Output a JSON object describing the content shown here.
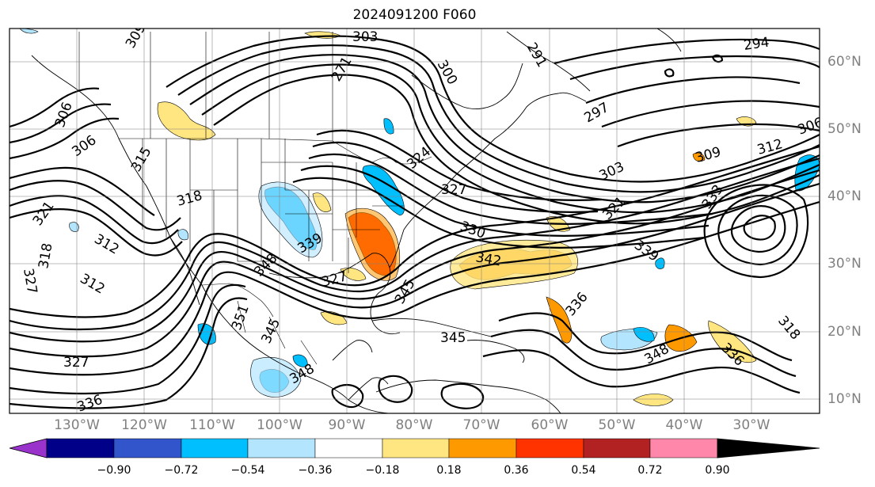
{
  "title": "2024091200 F060",
  "lon_labels": [
    "130°W",
    "120°W",
    "110°W",
    "100°W",
    "90°W",
    "80°W",
    "70°W",
    "60°W",
    "50°W",
    "40°W",
    "30°W"
  ],
  "lat_labels": [
    "60°N",
    "50°N",
    "40°N",
    "30°N",
    "20°N",
    "10°N"
  ],
  "colorbar": {
    "ticks": [
      "−0.90",
      "−0.72",
      "−0.54",
      "−0.36",
      "−0.18",
      "0.18",
      "0.36",
      "0.54",
      "0.72",
      "0.90"
    ],
    "colors": [
      "#9933cc",
      "#000088",
      "#3355cc",
      "#00bfff",
      "#b3e5ff",
      "#ffffff",
      "#ffe680",
      "#ff9900",
      "#ff3300",
      "#b22222",
      "#ff88aa"
    ]
  },
  "contour_labels": [
    {
      "text": "303"
    },
    {
      "text": "291"
    },
    {
      "text": "294"
    },
    {
      "text": "309"
    },
    {
      "text": "300"
    },
    {
      "text": "271"
    },
    {
      "text": "297"
    },
    {
      "text": "306"
    },
    {
      "text": "306"
    },
    {
      "text": "306"
    },
    {
      "text": "315"
    },
    {
      "text": "324"
    },
    {
      "text": "303"
    },
    {
      "text": "309"
    },
    {
      "text": "312"
    },
    {
      "text": "321"
    },
    {
      "text": "318"
    },
    {
      "text": "327"
    },
    {
      "text": "330"
    },
    {
      "text": "333"
    },
    {
      "text": "321"
    },
    {
      "text": "318"
    },
    {
      "text": "312"
    },
    {
      "text": "339"
    },
    {
      "text": "342"
    },
    {
      "text": "339"
    },
    {
      "text": "327"
    },
    {
      "text": "327"
    },
    {
      "text": "312"
    },
    {
      "text": "348"
    },
    {
      "text": "336"
    },
    {
      "text": "345"
    },
    {
      "text": "318"
    },
    {
      "text": "351"
    },
    {
      "text": "336"
    },
    {
      "text": "348"
    },
    {
      "text": "327"
    },
    {
      "text": "345"
    },
    {
      "text": "345"
    },
    {
      "text": "348"
    },
    {
      "text": "336"
    }
  ]
}
